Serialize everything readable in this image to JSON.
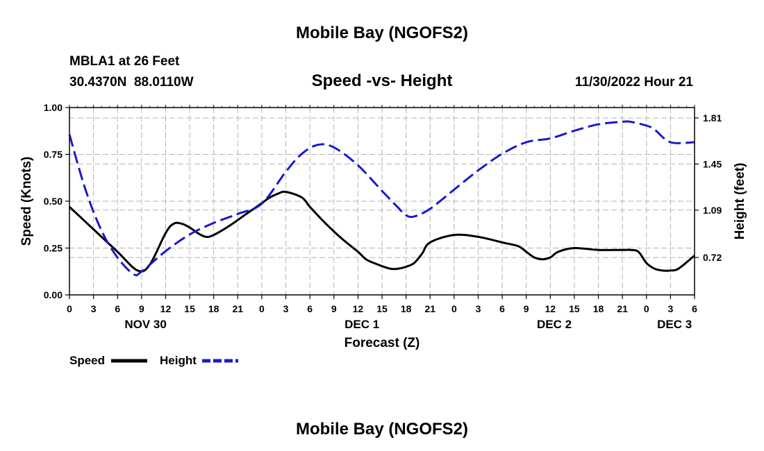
{
  "page": {
    "title_top": "Mobile Bay (NGOFS2)",
    "title_bottom": "Mobile Bay (NGOFS2)",
    "station": "MBLA1 at 26 Feet",
    "coords": "30.4370N  88.0110W",
    "timestamp": "11/30/2022 Hour 21"
  },
  "colors": {
    "speed": "#000000",
    "height": "#1a1acc",
    "grid": "#b4b4b4"
  },
  "chart_data": {
    "type": "line",
    "title": "Speed -vs- Height",
    "xlabel": "Forecast (Z)",
    "ylabel": "Speed (Knots)",
    "y2label": "Height (feet)",
    "x_unit": "hours from NOV 30 00Z",
    "xlim": [
      0,
      78
    ],
    "ylim": [
      0,
      1.0
    ],
    "y2lim": [
      0.428,
      1.891
    ],
    "x_ticks": [
      0,
      3,
      6,
      9,
      12,
      15,
      18,
      21,
      24,
      27,
      30,
      33,
      36,
      39,
      42,
      45,
      48,
      51,
      54,
      57,
      60,
      63,
      66,
      69,
      72,
      75,
      78
    ],
    "x_tick_labels": [
      "0",
      "3",
      "6",
      "9",
      "12",
      "15",
      "18",
      "21",
      "0",
      "3",
      "6",
      "9",
      "12",
      "15",
      "18",
      "21",
      "0",
      "3",
      "6",
      "9",
      "12",
      "15",
      "18",
      "21",
      "0",
      "3",
      "6"
    ],
    "day_labels": [
      {
        "x": 9.5,
        "label": "NOV 30"
      },
      {
        "x": 36.5,
        "label": "DEC 1"
      },
      {
        "x": 60.5,
        "label": "DEC 2"
      },
      {
        "x": 75.5,
        "label": "DEC 3"
      }
    ],
    "y_ticks": [
      0,
      0.25,
      0.5,
      0.75,
      1.0
    ],
    "y_tick_labels": [
      "0.00",
      "0.25",
      "0.50",
      "0.75",
      "1.00"
    ],
    "y2_ticks": [
      0.72,
      1.09,
      1.45,
      1.81
    ],
    "y2_tick_labels": [
      "0.72",
      "1.09",
      "1.45",
      "1.81"
    ],
    "legend": [
      {
        "label": "Speed",
        "series": "Speed"
      },
      {
        "label": "Height",
        "series": "Height"
      }
    ],
    "series": [
      {
        "name": "Speed",
        "axis": "left",
        "style": "solid",
        "x": [
          0,
          3,
          6,
          8.5,
          10,
          12,
          13,
          14,
          15,
          16,
          17,
          18,
          20,
          22,
          24,
          25,
          26,
          27,
          29,
          30,
          32,
          34,
          36,
          37,
          38,
          40,
          41,
          42,
          43,
          44,
          45,
          48,
          51,
          54,
          56,
          57,
          58,
          59,
          60,
          61,
          63,
          66,
          69,
          70,
          71,
          72,
          73,
          74,
          75,
          76,
          78
        ],
        "values": [
          0.47,
          0.35,
          0.23,
          0.13,
          0.16,
          0.33,
          0.38,
          0.38,
          0.36,
          0.33,
          0.31,
          0.32,
          0.37,
          0.43,
          0.49,
          0.52,
          0.54,
          0.55,
          0.52,
          0.47,
          0.38,
          0.3,
          0.23,
          0.19,
          0.17,
          0.14,
          0.14,
          0.15,
          0.17,
          0.22,
          0.28,
          0.32,
          0.31,
          0.28,
          0.26,
          0.23,
          0.2,
          0.19,
          0.2,
          0.23,
          0.25,
          0.24,
          0.24,
          0.24,
          0.23,
          0.17,
          0.14,
          0.13,
          0.13,
          0.14,
          0.21
        ]
      },
      {
        "name": "Height",
        "axis": "right",
        "style": "dashed",
        "x": [
          0,
          2,
          4,
          6,
          8,
          9,
          12,
          15,
          18,
          21,
          24,
          27,
          29,
          31,
          33,
          36,
          39,
          41,
          42,
          43,
          45,
          48,
          51,
          54,
          57,
          60,
          63,
          66,
          69,
          70,
          72,
          73,
          75,
          78
        ],
        "values": [
          1.68,
          1.25,
          0.93,
          0.72,
          0.59,
          0.61,
          0.77,
          0.9,
          0.99,
          1.06,
          1.14,
          1.39,
          1.53,
          1.6,
          1.58,
          1.44,
          1.24,
          1.11,
          1.05,
          1.04,
          1.1,
          1.25,
          1.4,
          1.53,
          1.62,
          1.65,
          1.71,
          1.76,
          1.78,
          1.78,
          1.75,
          1.72,
          1.62,
          1.62
        ]
      }
    ]
  }
}
